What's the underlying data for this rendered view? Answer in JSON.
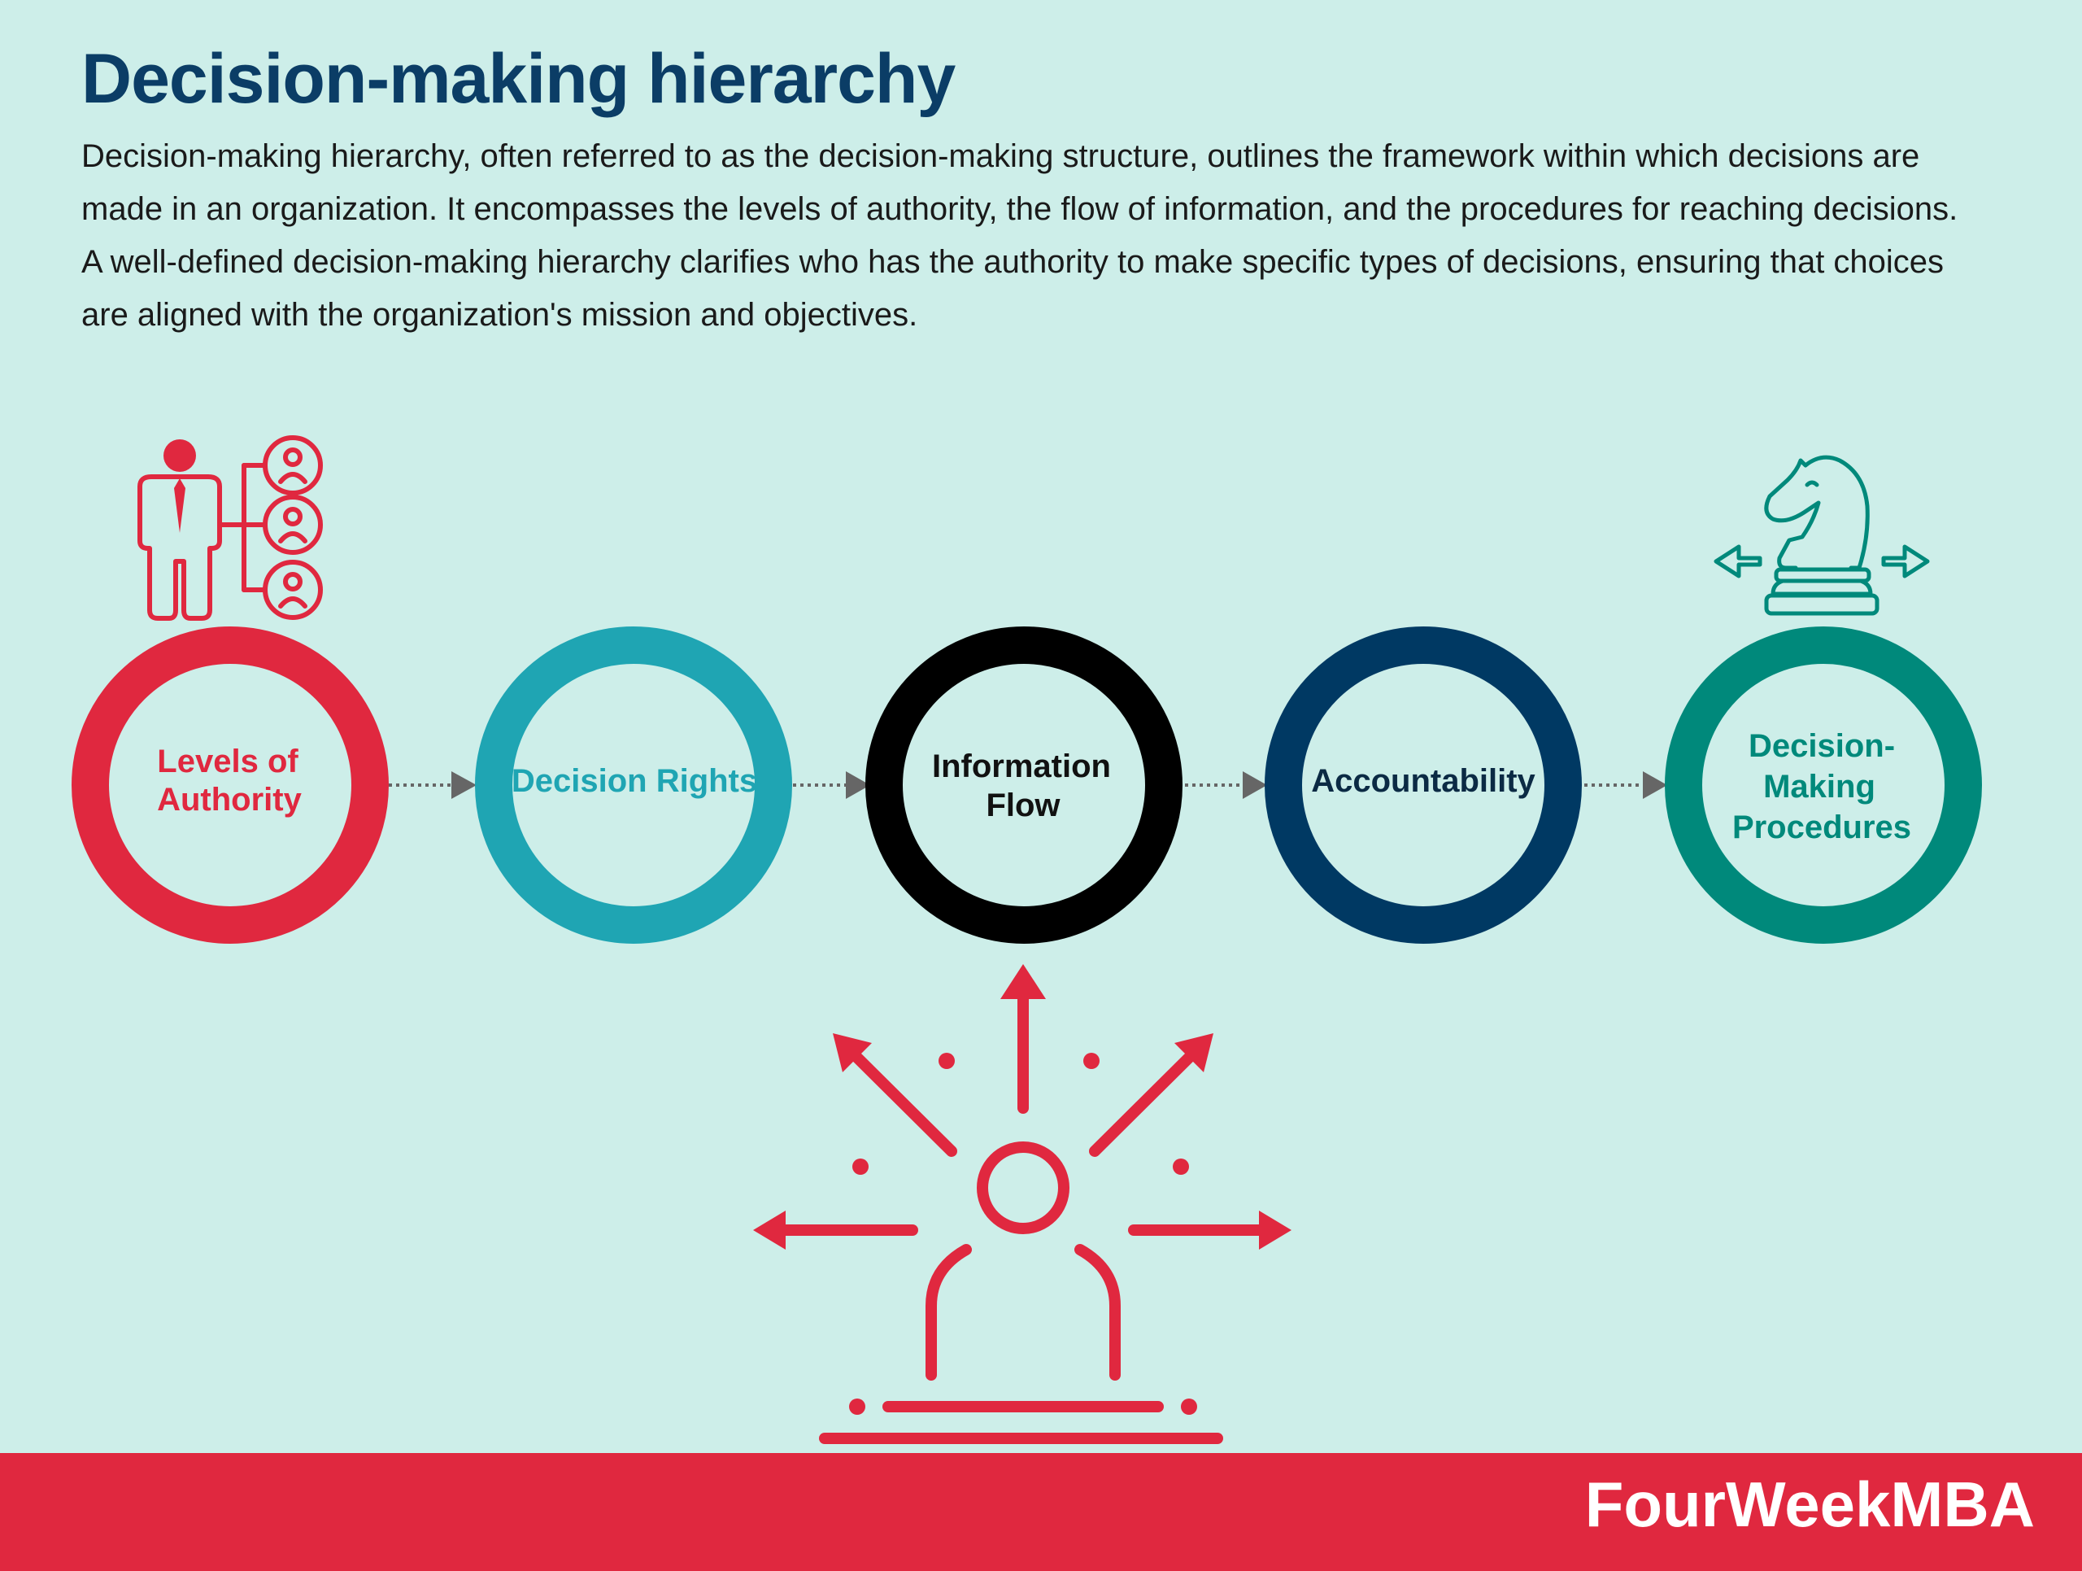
{
  "header": {
    "title": "Decision-making hierarchy",
    "description": "Decision-making hierarchy, often referred to as the decision-making structure, outlines the framework within which decisions are made in an organization. It encompasses the levels of authority, the flow of information, and the procedures for reaching decisions. A well-defined decision-making hierarchy clarifies who has the authority to make specific types of decisions, ensuring that choices are aligned with the organization's mission and objectives."
  },
  "steps": [
    {
      "line1": "Levels of",
      "line2": "Authority",
      "color": "#e0283f"
    },
    {
      "line1": "Decision Rights",
      "color": "#1fa5b3"
    },
    {
      "line1": "Information",
      "line2": "Flow",
      "color": "#000000"
    },
    {
      "line1": "Accountability",
      "color": "#003963"
    },
    {
      "line1": "Decision-",
      "line2": "Making",
      "line3": "Procedures",
      "color": "#00897b"
    }
  ],
  "icons": {
    "hierarchy": "org-hierarchy-icon",
    "strategy": "chess-knight-icon",
    "decision": "person-arrows-icon"
  },
  "footer": {
    "brand": "FourWeekMBA"
  }
}
